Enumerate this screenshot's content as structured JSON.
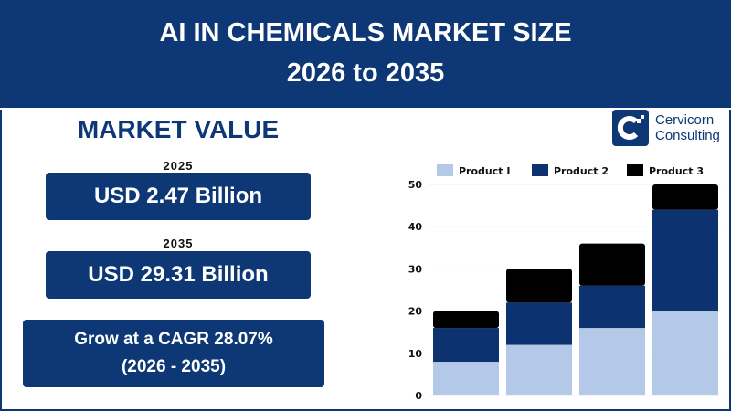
{
  "header": {
    "title_line1": "AI IN CHEMICALS MARKET SIZE",
    "title_line2": "2026 to 2035"
  },
  "market": {
    "title": "MARKET VALUE",
    "items": [
      {
        "year": "2025",
        "value": "USD 2.47 Billion"
      },
      {
        "year": "2035",
        "value": "USD 29.31 Billion"
      }
    ],
    "cagr_line1": "Grow at a CAGR 28.07%",
    "cagr_line2": "(2026 - 2035)"
  },
  "logo": {
    "line1": "Cervicorn",
    "line2": "Consulting"
  },
  "colors": {
    "brand": "#0d3775",
    "product1": "#b4c9e8",
    "product2": "#0d3270",
    "product3": "#000000"
  },
  "chart_data": {
    "type": "bar",
    "stacked": true,
    "categories": [
      "",
      "",
      "",
      ""
    ],
    "series": [
      {
        "name": "Product I",
        "values": [
          8,
          12,
          16,
          20
        ]
      },
      {
        "name": "Product 2",
        "values": [
          8,
          10,
          10,
          24
        ]
      },
      {
        "name": "Product 3",
        "values": [
          4,
          8,
          10,
          6
        ]
      }
    ],
    "yticks": [
      "0",
      "10",
      "20",
      "30",
      "40",
      "50"
    ],
    "ylim": [
      0,
      50
    ],
    "grid": true,
    "legend": "top"
  }
}
